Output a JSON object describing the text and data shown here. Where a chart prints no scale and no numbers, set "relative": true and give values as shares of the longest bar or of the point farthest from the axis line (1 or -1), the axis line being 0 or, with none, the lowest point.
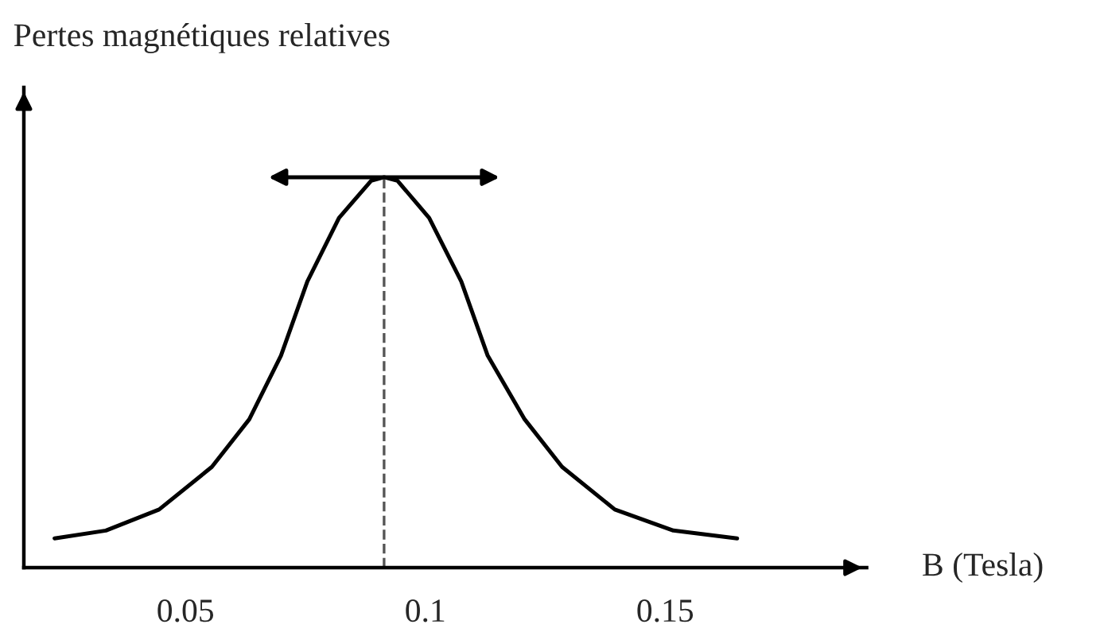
{
  "chart_data": {
    "type": "line",
    "relative": true,
    "ylabel": "Pertes magnétiques relatives",
    "xlabel": "B (Tesla)",
    "xlim": [
      0.0163,
      0.192
    ],
    "xticks": [
      0.05,
      0.1,
      0.15
    ],
    "grid": false,
    "marker": "none",
    "line_style": "solid",
    "series": [
      {
        "color": "#000000",
        "x": [
          0.0227,
          0.0334,
          0.0445,
          0.0555,
          0.0633,
          0.0699,
          0.0754,
          0.082,
          0.0887,
          0.0914,
          0.0942,
          0.1008,
          0.1075,
          0.113,
          0.1207,
          0.1285,
          0.1395,
          0.1517,
          0.165
        ],
        "values": [
          0.075,
          0.095,
          0.149,
          0.258,
          0.38,
          0.543,
          0.733,
          0.896,
          0.991,
          1,
          0.991,
          0.896,
          0.733,
          0.543,
          0.38,
          0.258,
          0.149,
          0.095,
          0.075
        ]
      }
    ],
    "ref_lines": [
      {
        "axis": "x",
        "value": 0.0914,
        "color": "#555555",
        "line_style": "dashed"
      }
    ]
  }
}
